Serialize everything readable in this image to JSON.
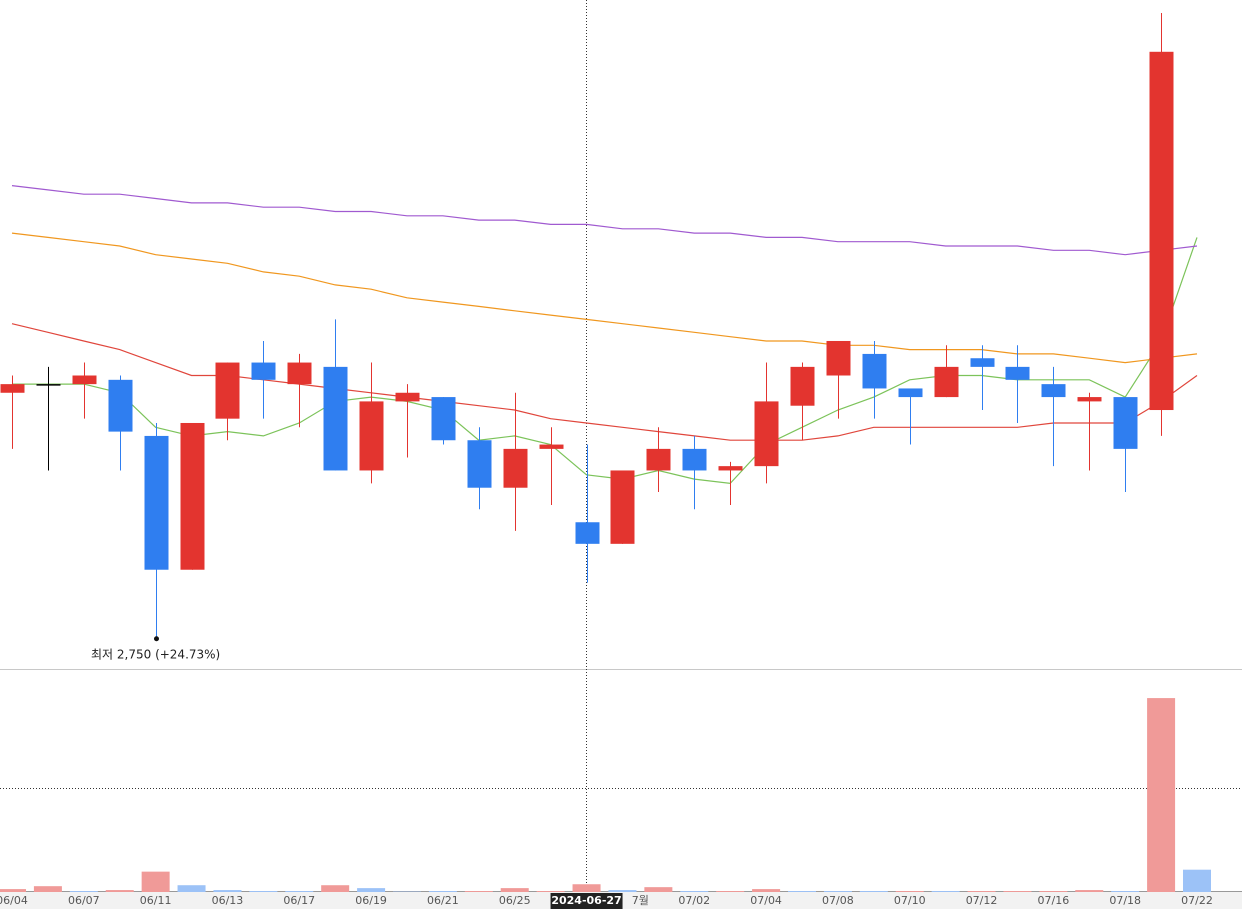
{
  "chart_data": {
    "type": "candlestick",
    "categories": [
      "06/04",
      null,
      "06/07",
      null,
      "06/11",
      null,
      "06/13",
      null,
      "06/17",
      null,
      "06/19",
      null,
      "06/21",
      null,
      "06/25",
      null,
      "2024-06-27",
      null,
      "7월",
      "07/02",
      null,
      "07/04",
      null,
      "07/08",
      null,
      "07/10",
      null,
      "07/12",
      null,
      "07/16",
      null,
      "07/18",
      null,
      "07/22"
    ],
    "open": [
      3035,
      3045,
      3045,
      3050,
      2985,
      2830,
      3005,
      3070,
      3045,
      3065,
      2945,
      3025,
      3030,
      2980,
      2925,
      2970,
      2885,
      2860,
      2945,
      2970,
      2945,
      2950,
      3020,
      3055,
      3080,
      3040,
      3030,
      3075,
      3065,
      3045,
      3025,
      3030,
      3015,
      null
    ],
    "high": [
      3055,
      3065,
      3070,
      3055,
      3000,
      3000,
      3070,
      3095,
      3080,
      3120,
      3070,
      3045,
      3030,
      2995,
      3035,
      2995,
      2975,
      2945,
      2995,
      2985,
      2955,
      3070,
      3070,
      3095,
      3095,
      3040,
      3090,
      3090,
      3090,
      3065,
      3035,
      3030,
      3475,
      null
    ],
    "low": [
      2970,
      2945,
      3005,
      2945,
      2750,
      2830,
      2980,
      3005,
      2995,
      2945,
      2930,
      2960,
      2975,
      2900,
      2875,
      2905,
      2815,
      2860,
      2920,
      2900,
      2905,
      2930,
      2980,
      3005,
      3005,
      2975,
      3030,
      3015,
      3000,
      2950,
      2945,
      2920,
      2985,
      null
    ],
    "close": [
      3045,
      3045,
      3055,
      2990,
      2830,
      3000,
      3070,
      3050,
      3070,
      2945,
      3025,
      3035,
      2980,
      2925,
      2970,
      2975,
      2860,
      2945,
      2970,
      2945,
      2950,
      3025,
      3065,
      3095,
      3040,
      3030,
      3065,
      3065,
      3050,
      3030,
      3030,
      2970,
      3430,
      null
    ],
    "ylim": [
      2715,
      3490
    ],
    "up_color": "#e3342f",
    "down_color": "#2f7ef0",
    "flat_color": "#000000",
    "moving_averages": [
      {
        "color": "#7cc35a",
        "values": [
          3045,
          3045,
          3045,
          3035,
          2995,
          2985,
          2990,
          2985,
          3000,
          3025,
          3030,
          3025,
          3015,
          2980,
          2985,
          2975,
          2940,
          2935,
          2945,
          2935,
          2930,
          2975,
          2995,
          3015,
          3030,
          3050,
          3055,
          3055,
          3050,
          3050,
          3050,
          3030,
          3095,
          3215
        ]
      },
      {
        "color": "#e0463c",
        "values": [
          3115,
          3105,
          3095,
          3085,
          3070,
          3055,
          3055,
          3050,
          3045,
          3040,
          3035,
          3030,
          3025,
          3020,
          3015,
          3005,
          3000,
          2995,
          2990,
          2985,
          2980,
          2980,
          2980,
          2985,
          2995,
          2995,
          2995,
          2995,
          2995,
          3000,
          3000,
          3000,
          3025,
          3055
        ]
      },
      {
        "color": "#f0971f",
        "values": [
          3220,
          3215,
          3210,
          3205,
          3195,
          3190,
          3185,
          3175,
          3170,
          3160,
          3155,
          3145,
          3140,
          3135,
          3130,
          3125,
          3120,
          3115,
          3110,
          3105,
          3100,
          3095,
          3095,
          3090,
          3090,
          3085,
          3085,
          3085,
          3080,
          3080,
          3075,
          3070,
          3075,
          3080
        ]
      },
      {
        "color": "#a05ad0",
        "values": [
          3275,
          3270,
          3265,
          3265,
          3260,
          3255,
          3255,
          3250,
          3250,
          3245,
          3245,
          3240,
          3240,
          3235,
          3235,
          3230,
          3230,
          3225,
          3225,
          3220,
          3220,
          3215,
          3215,
          3210,
          3210,
          3210,
          3205,
          3205,
          3205,
          3200,
          3200,
          3195,
          3200,
          3205
        ]
      }
    ],
    "volume": {
      "ylim": [
        0,
        1150
      ],
      "values": [
        15,
        30,
        5,
        10,
        105,
        35,
        10,
        5,
        5,
        35,
        20,
        2,
        5,
        5,
        20,
        5,
        40,
        10,
        25,
        5,
        5,
        15,
        5,
        5,
        5,
        5,
        5,
        5,
        5,
        5,
        10,
        5,
        1000,
        115
      ],
      "colors": [
        "#f09a98",
        "#f09a98",
        "#9cc2f7",
        "#f09a98",
        "#f09a98",
        "#9cc2f7",
        "#9cc2f7",
        "#9cc2f7",
        "#9cc2f7",
        "#f09a98",
        "#9cc2f7",
        "#9cc2f7",
        "#9cc2f7",
        "#f09a98",
        "#f09a98",
        "#f09a98",
        "#f09a98",
        "#9cc2f7",
        "#f09a98",
        "#9cc2f7",
        "#f09a98",
        "#f09a98",
        "#9cc2f7",
        "#9cc2f7",
        "#9cc2f7",
        "#f09a98",
        "#9cc2f7",
        "#f09a98",
        "#f09a98",
        "#f09a98",
        "#f09a98",
        "#9cc2f7",
        "#f09a98",
        "#9cc2f7"
      ]
    },
    "annotation": "최저 2,750 (+24.73%)"
  }
}
